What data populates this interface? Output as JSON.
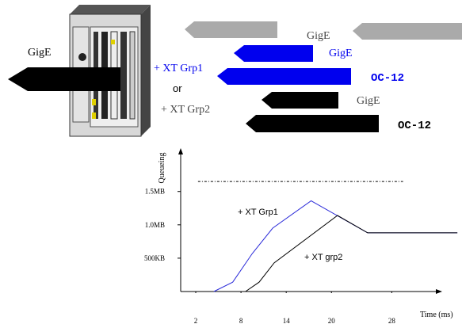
{
  "diagram": {
    "left_link": "GigE",
    "option_1": "+ XT Grp1",
    "or": "or",
    "option_2": "+ XT Grp2",
    "links": [
      "GigE",
      "GigE",
      "OC-12",
      "GigE",
      "OC-12"
    ]
  },
  "chart_data": {
    "type": "line",
    "y_label": "Queueing",
    "x_label": "Time (ms)",
    "xlim": [
      0,
      37
    ],
    "ylim": [
      0,
      2.15
    ],
    "xticks": [
      2,
      8,
      14,
      20,
      28
    ],
    "yticks": [
      {
        "value": 0.5,
        "label": "500KB"
      },
      {
        "value": 1.0,
        "label": "1.0MB"
      },
      {
        "value": 1.5,
        "label": "1.5MB"
      }
    ],
    "reference_line": {
      "y": 1.65,
      "x": [
        2.3,
        29.5
      ]
    },
    "series": [
      {
        "name": "+ XT Grp1",
        "color": "#2b2bd9",
        "x": [
          4.4,
          6.9,
          9.5,
          12.2,
          17.3,
          24.8,
          36.7
        ],
        "values": [
          0,
          0.14,
          0.57,
          0.95,
          1.36,
          0.88,
          0.88
        ]
      },
      {
        "name": "+ XT grp2",
        "color": "#000000",
        "x": [
          8.6,
          10.4,
          12.4,
          20.8,
          24.8,
          36.7
        ],
        "values": [
          0,
          0.14,
          0.43,
          1.14,
          0.88,
          0.88
        ]
      }
    ]
  }
}
